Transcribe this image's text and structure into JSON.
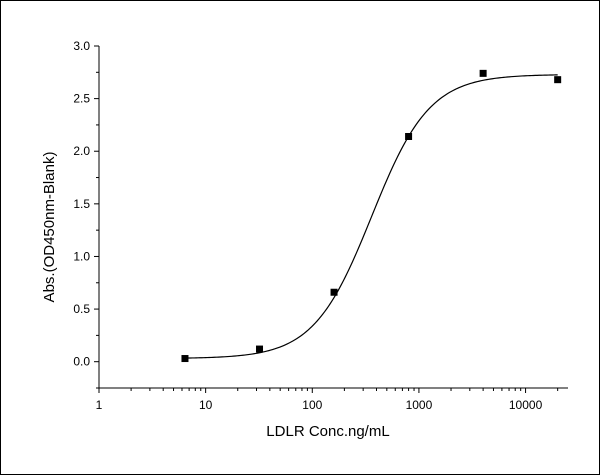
{
  "chart_data": {
    "type": "scatter",
    "title": "",
    "xlabel": "LDLR Conc.ng/mL",
    "ylabel": "Abs.(OD450nm-Blank)",
    "x_scale": "log",
    "xlim": [
      1,
      25000
    ],
    "ylim": [
      -0.25,
      3.0
    ],
    "x_ticks": [
      "1",
      "10",
      "100",
      "1000",
      "10000"
    ],
    "y_ticks": [
      "0.0",
      "0.5",
      "1.0",
      "1.5",
      "2.0",
      "2.5",
      "3.0"
    ],
    "grid": false,
    "legend": "none",
    "series": [
      {
        "points": [
          {
            "x": 6.4,
            "y": 0.03
          },
          {
            "x": 32,
            "y": 0.12
          },
          {
            "x": 160,
            "y": 0.66
          },
          {
            "x": 800,
            "y": 2.14
          },
          {
            "x": 4000,
            "y": 2.74
          },
          {
            "x": 20000,
            "y": 2.68
          }
        ],
        "marker": "square",
        "color": "#000000"
      }
    ],
    "fit_curve": {
      "model": "4PL",
      "bottom": 0.03,
      "top": 2.73,
      "ec50": 360,
      "hill": 1.6,
      "x_range": [
        6.4,
        20000
      ],
      "color": "#000000"
    }
  }
}
